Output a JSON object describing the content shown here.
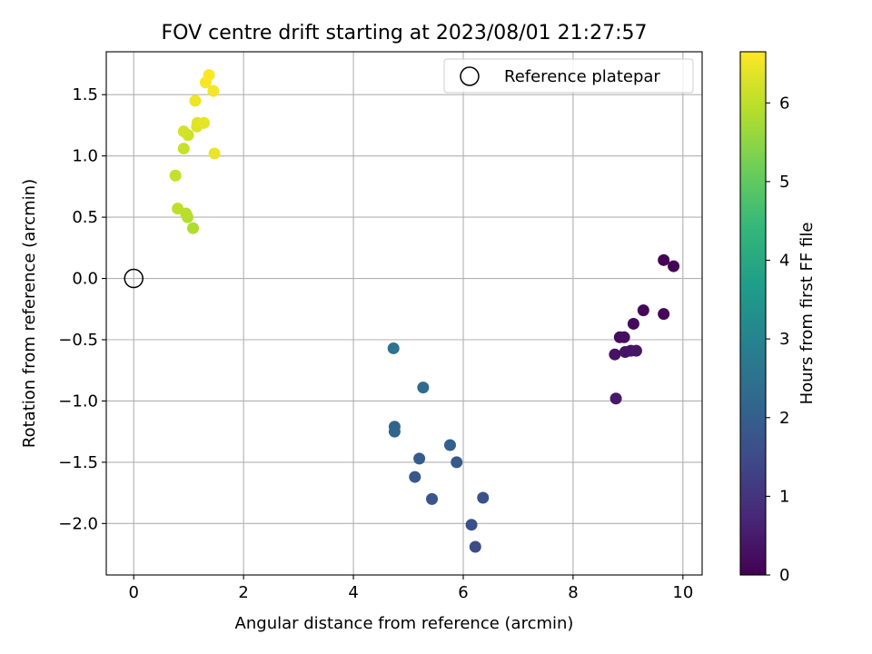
{
  "chart_data": {
    "type": "scatter",
    "title": "FOV centre drift starting at 2023/08/01 21:27:57",
    "xlabel": "Angular distance from reference (arcmin)",
    "ylabel": "Rotation from reference (arcmin)",
    "xlim": [
      -0.5,
      10.35
    ],
    "ylim": [
      -2.42,
      1.85
    ],
    "xticks": [
      0,
      2,
      4,
      6,
      8,
      10
    ],
    "xtick_labels": [
      "0",
      "2",
      "4",
      "6",
      "8",
      "10"
    ],
    "yticks": [
      -2.0,
      -1.5,
      -1.0,
      -0.5,
      0.0,
      0.5,
      1.0,
      1.5
    ],
    "ytick_labels": [
      "−2.0",
      "−1.5",
      "−1.0",
      "−0.5",
      "0.0",
      "0.5",
      "1.0",
      "1.5"
    ],
    "grid": true,
    "colormap": "viridis",
    "colorbar": {
      "label": "Hours from first FF file",
      "range": [
        0,
        6.65
      ],
      "ticks": [
        0,
        1,
        2,
        3,
        4,
        5,
        6
      ],
      "tick_labels": [
        "0",
        "1",
        "2",
        "3",
        "4",
        "5",
        "6"
      ]
    },
    "reference": {
      "name": "Reference platepar",
      "x": 0,
      "y": 0
    },
    "legend": {
      "entries": [
        "Reference platepar"
      ],
      "placement": "top-right"
    },
    "points": [
      {
        "x": 9.65,
        "y": 0.15,
        "h": 0.05
      },
      {
        "x": 9.83,
        "y": 0.1,
        "h": 0.08
      },
      {
        "x": 9.65,
        "y": -0.29,
        "h": 0.1
      },
      {
        "x": 9.28,
        "y": -0.26,
        "h": 0.12
      },
      {
        "x": 9.1,
        "y": -0.37,
        "h": 0.15
      },
      {
        "x": 8.85,
        "y": -0.48,
        "h": 0.2
      },
      {
        "x": 8.93,
        "y": -0.48,
        "h": 0.25
      },
      {
        "x": 8.76,
        "y": -0.62,
        "h": 0.3
      },
      {
        "x": 8.95,
        "y": -0.6,
        "h": 0.33
      },
      {
        "x": 9.05,
        "y": -0.59,
        "h": 0.36
      },
      {
        "x": 9.15,
        "y": -0.59,
        "h": 0.4
      },
      {
        "x": 8.78,
        "y": -0.98,
        "h": 0.45
      },
      {
        "x": 6.22,
        "y": -2.19,
        "h": 1.55
      },
      {
        "x": 6.15,
        "y": -2.01,
        "h": 1.6
      },
      {
        "x": 6.36,
        "y": -1.79,
        "h": 1.65
      },
      {
        "x": 5.43,
        "y": -1.8,
        "h": 1.75
      },
      {
        "x": 5.12,
        "y": -1.62,
        "h": 1.8
      },
      {
        "x": 5.88,
        "y": -1.5,
        "h": 1.85
      },
      {
        "x": 5.2,
        "y": -1.47,
        "h": 1.9
      },
      {
        "x": 5.76,
        "y": -1.36,
        "h": 2.0
      },
      {
        "x": 4.75,
        "y": -1.25,
        "h": 2.1
      },
      {
        "x": 4.75,
        "y": -1.21,
        "h": 2.15
      },
      {
        "x": 5.27,
        "y": -0.89,
        "h": 2.3
      },
      {
        "x": 4.73,
        "y": -0.57,
        "h": 2.5
      },
      {
        "x": 1.08,
        "y": 0.41,
        "h": 5.85
      },
      {
        "x": 0.98,
        "y": 0.5,
        "h": 5.9
      },
      {
        "x": 0.95,
        "y": 0.53,
        "h": 5.95
      },
      {
        "x": 0.8,
        "y": 0.57,
        "h": 6.0
      },
      {
        "x": 0.76,
        "y": 0.84,
        "h": 6.05
      },
      {
        "x": 0.91,
        "y": 1.06,
        "h": 6.1
      },
      {
        "x": 0.99,
        "y": 1.17,
        "h": 6.15
      },
      {
        "x": 0.91,
        "y": 1.2,
        "h": 6.2
      },
      {
        "x": 1.15,
        "y": 1.24,
        "h": 6.3
      },
      {
        "x": 1.16,
        "y": 1.27,
        "h": 6.35
      },
      {
        "x": 1.28,
        "y": 1.27,
        "h": 6.4
      },
      {
        "x": 1.47,
        "y": 1.02,
        "h": 6.45
      },
      {
        "x": 1.12,
        "y": 1.45,
        "h": 6.5
      },
      {
        "x": 1.45,
        "y": 1.53,
        "h": 6.55
      },
      {
        "x": 1.31,
        "y": 1.6,
        "h": 6.6
      },
      {
        "x": 1.37,
        "y": 1.66,
        "h": 6.65
      }
    ]
  }
}
